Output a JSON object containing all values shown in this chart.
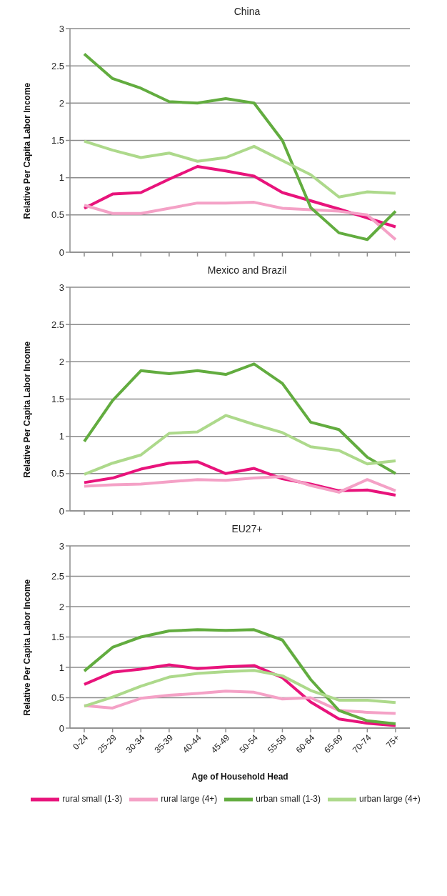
{
  "chart_data": [
    {
      "type": "line",
      "title": "China",
      "ylabel": "Relative Per Capita Labor Income",
      "categories": [
        null,
        null,
        null,
        null,
        null,
        null,
        null,
        null,
        null,
        null,
        null,
        null
      ],
      "tick_labels": "y",
      "ylim": [
        0,
        3
      ],
      "yticks": [
        0,
        0.5,
        1,
        1.5,
        2,
        2.5,
        3
      ],
      "grid": "y",
      "marker": "none",
      "line_style": "solid",
      "series": [
        {
          "color": "#e8137b",
          "values": [
            0.59,
            0.78,
            0.8,
            0.98,
            1.15,
            1.09,
            1.02,
            0.8,
            0.69,
            0.58,
            0.46,
            0.34
          ]
        },
        {
          "color": "#f4a1c6",
          "values": [
            0.63,
            0.52,
            0.52,
            0.59,
            0.66,
            0.66,
            0.67,
            0.59,
            0.57,
            0.55,
            0.5,
            0.17
          ]
        },
        {
          "color": "#62ac3f",
          "values": [
            2.66,
            2.33,
            2.2,
            2.02,
            2.0,
            2.06,
            2.0,
            1.5,
            0.6,
            0.26,
            0.17,
            0.55
          ]
        },
        {
          "color": "#add98b",
          "values": [
            1.49,
            1.37,
            1.27,
            1.33,
            1.22,
            1.27,
            1.42,
            1.23,
            1.04,
            0.74,
            0.81,
            0.79
          ]
        }
      ]
    },
    {
      "type": "line",
      "title": "Mexico and Brazil",
      "ylabel": "Relative Per Capita Labor Income",
      "categories": [
        null,
        null,
        null,
        null,
        null,
        null,
        null,
        null,
        null,
        null,
        null,
        null
      ],
      "tick_labels": "y",
      "ylim": [
        0,
        3
      ],
      "yticks": [
        0,
        0.5,
        1,
        1.5,
        2,
        2.5,
        3
      ],
      "grid": "y",
      "marker": "none",
      "line_style": "solid",
      "series": [
        {
          "color": "#e8137b",
          "values": [
            0.38,
            0.44,
            0.56,
            0.64,
            0.66,
            0.5,
            0.57,
            0.43,
            0.36,
            0.27,
            0.28,
            0.21
          ]
        },
        {
          "color": "#f4a1c6",
          "values": [
            0.33,
            0.35,
            0.36,
            0.39,
            0.42,
            0.41,
            0.44,
            0.46,
            0.34,
            0.25,
            0.42,
            0.27
          ]
        },
        {
          "color": "#62ac3f",
          "values": [
            0.93,
            1.48,
            1.88,
            1.84,
            1.88,
            1.83,
            1.97,
            1.71,
            1.19,
            1.09,
            0.72,
            0.5
          ]
        },
        {
          "color": "#add98b",
          "values": [
            0.49,
            0.64,
            0.75,
            1.04,
            1.06,
            1.28,
            1.16,
            1.05,
            0.86,
            0.81,
            0.63,
            0.67
          ]
        }
      ]
    },
    {
      "type": "line",
      "title": "EU27+",
      "xlabel": "Age of Household Head",
      "ylabel": "Relative Per Capita Labor Income",
      "categories": [
        "0-24",
        "25-29",
        "30-34",
        "35-39",
        "40-44",
        "45-49",
        "50-54",
        "55-59",
        "60-64",
        "65-69",
        "70-74",
        "75+"
      ],
      "ylim": [
        0,
        3
      ],
      "yticks": [
        0,
        0.5,
        1,
        1.5,
        2,
        2.5,
        3
      ],
      "grid": "y",
      "legend": "bottom",
      "marker": "none",
      "line_style": "solid",
      "series": [
        {
          "name": "rural small (1-3)",
          "color": "#e8137b",
          "values": [
            0.72,
            0.92,
            0.97,
            1.04,
            0.98,
            1.01,
            1.03,
            0.83,
            0.43,
            0.15,
            0.08,
            0.04
          ]
        },
        {
          "name": "rural large (4+)",
          "color": "#f4a1c6",
          "values": [
            0.37,
            0.33,
            0.49,
            0.54,
            0.57,
            0.61,
            0.59,
            0.48,
            0.5,
            0.29,
            0.26,
            0.24
          ]
        },
        {
          "name": "urban small (1-3)",
          "color": "#62ac3f",
          "values": [
            0.94,
            1.33,
            1.5,
            1.6,
            1.62,
            1.61,
            1.62,
            1.45,
            0.8,
            0.29,
            0.12,
            0.07
          ]
        },
        {
          "name": "urban large (4+)",
          "color": "#add98b",
          "values": [
            0.36,
            0.51,
            0.69,
            0.84,
            0.9,
            0.93,
            0.95,
            0.86,
            0.62,
            0.46,
            0.46,
            0.42
          ]
        }
      ]
    }
  ]
}
